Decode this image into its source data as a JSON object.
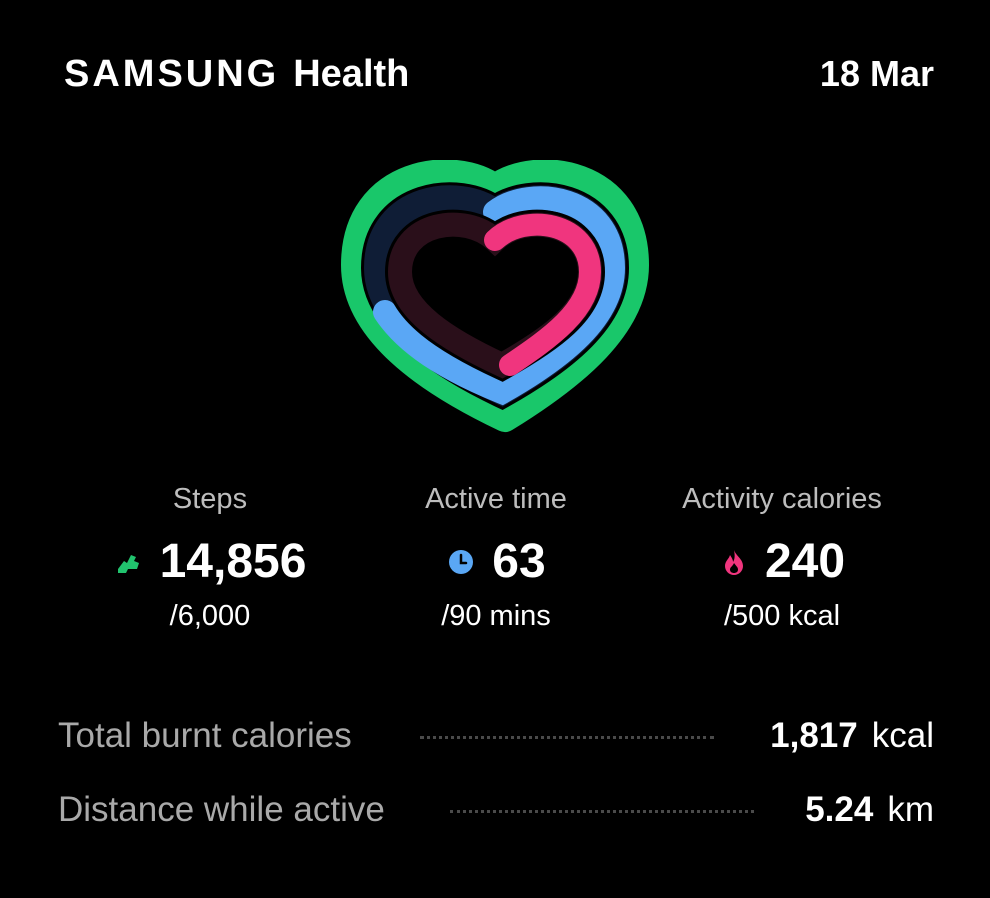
{
  "header": {
    "brand_samsung": "SAMSUNG",
    "brand_health": "Health",
    "date": "18 Mar"
  },
  "activity_rings": {
    "colors": {
      "steps": "#19c76a",
      "active_time": "#5aa7f5",
      "activity_calories": "#f0357e",
      "steps_track": "#0d1a33",
      "calories_track": "#2a0f1a"
    }
  },
  "stats": [
    {
      "label": "Steps",
      "icon": "shoe-icon",
      "value": "14,856",
      "goal": "/6,000",
      "color": "#21c36e"
    },
    {
      "label": "Active time",
      "icon": "clock-icon",
      "value": "63",
      "goal": "/90 mins",
      "color": "#5aa7f5"
    },
    {
      "label": "Activity calories",
      "icon": "flame-icon",
      "value": "240",
      "goal": "/500 kcal",
      "color": "#f0357e"
    }
  ],
  "metrics": [
    {
      "label": "Total burnt calories",
      "value": "1,817",
      "unit": "kcal"
    },
    {
      "label": "Distance while active",
      "value": "5.24",
      "unit": "km"
    }
  ]
}
